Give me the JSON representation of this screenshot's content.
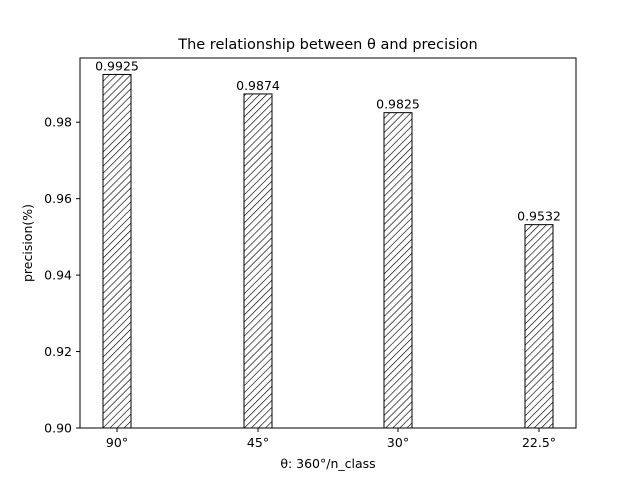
{
  "chart_data": {
    "type": "bar",
    "title": "The relationship between θ and precision",
    "xlabel": "θ: 360°/n_class",
    "ylabel": "precision(%)",
    "categories": [
      "90°",
      "45°",
      "30°",
      "22.5°"
    ],
    "values": [
      0.9925,
      0.9874,
      0.9825,
      0.9532
    ],
    "data_labels": [
      "0.9925",
      "0.9874",
      "0.9825",
      "0.9532"
    ],
    "ylim": [
      0.9,
      0.9968
    ],
    "yticks": [
      0.9,
      0.92,
      0.94,
      0.96,
      0.98
    ],
    "ytick_labels": [
      "0.90",
      "0.92",
      "0.94",
      "0.96",
      "0.98"
    ],
    "grid": false,
    "bar_fill": "hatched",
    "colors": {
      "bar_edge": "#000000",
      "hatch": "#000000",
      "background": "#ffffff"
    }
  }
}
